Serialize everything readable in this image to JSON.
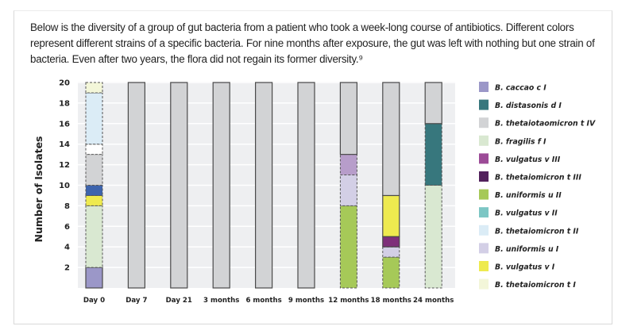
{
  "description": "Below is the diversity of a group of gut bacteria from a patient who took a week-long course of antibiotics. Different colors represent different strains of a specific bacteria. For nine months after exposure, the gut was left with nothing but one strain of bacteria. Even after two years, the flora did not regain its former diversity.⁹",
  "chart_data": {
    "type": "bar",
    "stacked": true,
    "title": "",
    "xlabel": "",
    "ylabel": "Number of Isolates",
    "ylim": [
      0,
      20
    ],
    "yticks": [
      2,
      4,
      6,
      8,
      10,
      12,
      14,
      16,
      18,
      20
    ],
    "grid": true,
    "legend_position": "right",
    "categories": [
      "Day 0",
      "Day 7",
      "Day 21",
      "3 months",
      "6 months",
      "9 months",
      "12 months",
      "18 months",
      "24 months"
    ],
    "legend": [
      {
        "name": "B. caccao c I",
        "color": "#9b97c8"
      },
      {
        "name": "B. distasonis d I",
        "color": "#37777d"
      },
      {
        "name": "B. thetaiotaomicron t IV",
        "color": "#d2d3d5"
      },
      {
        "name": "B. fragilis f I",
        "color": "#d9e8d1"
      },
      {
        "name": "B. vulgatus v III",
        "color": "#9c4b97"
      },
      {
        "name": "B. thetaiomicron t III",
        "color": "#52215c"
      },
      {
        "name": "B. uniformis u II",
        "color": "#a6c958"
      },
      {
        "name": "B. vulgatus v II",
        "color": "#7cc6c4"
      },
      {
        "name": "B. thetaiomicron t II",
        "color": "#dbecf6"
      },
      {
        "name": "B. uniformis u I",
        "color": "#d3cfe6"
      },
      {
        "name": "B. vulgatus v I",
        "color": "#eeea4f"
      },
      {
        "name": "B. thetaiomicron t I",
        "color": "#f3f6d9"
      }
    ],
    "stacks": [
      {
        "category": "Day 0",
        "segments": [
          {
            "strain": "B. caccao c I",
            "value": 2,
            "color": "#9b97c8",
            "dashed": false
          },
          {
            "strain": "B. fragilis f I",
            "value": 6,
            "color": "#d9e8d1",
            "dashed": true
          },
          {
            "strain": "B. vulgatus v I",
            "value": 1,
            "color": "#eeea4f",
            "dashed": true
          },
          {
            "strain": "unlabeled (blue)",
            "value": 1,
            "color": "#3d64ad",
            "dashed": true
          },
          {
            "strain": "B. thetaiotaomicron t IV",
            "value": 3,
            "color": "#d2d3d5",
            "dashed": true
          },
          {
            "strain": "unlabeled (white)",
            "value": 1,
            "color": "#ffffff",
            "dashed": true
          },
          {
            "strain": "B. thetaiomicron t II",
            "value": 5,
            "color": "#dbecf6",
            "dashed": true
          },
          {
            "strain": "B. thetaiomicron t I",
            "value": 1,
            "color": "#f3f6d9",
            "dashed": true
          }
        ]
      },
      {
        "category": "Day 7",
        "segments": [
          {
            "strain": "B. thetaiotaomicron t IV",
            "value": 20,
            "color": "#d2d3d5",
            "dashed": false
          }
        ]
      },
      {
        "category": "Day 21",
        "segments": [
          {
            "strain": "B. thetaiotaomicron t IV",
            "value": 20,
            "color": "#d2d3d5",
            "dashed": false
          }
        ]
      },
      {
        "category": "3 months",
        "segments": [
          {
            "strain": "B. thetaiotaomicron t IV",
            "value": 20,
            "color": "#d2d3d5",
            "dashed": false
          }
        ]
      },
      {
        "category": "6 months",
        "segments": [
          {
            "strain": "B. thetaiotaomicron t IV",
            "value": 20,
            "color": "#d2d3d5",
            "dashed": false
          }
        ]
      },
      {
        "category": "9 months",
        "segments": [
          {
            "strain": "B. thetaiotaomicron t IV",
            "value": 20,
            "color": "#d2d3d5",
            "dashed": false
          }
        ]
      },
      {
        "category": "12 months",
        "segments": [
          {
            "strain": "B. uniformis u II",
            "value": 8,
            "color": "#a6c958",
            "dashed": true
          },
          {
            "strain": "B. uniformis u I",
            "value": 3,
            "color": "#d3cfe6",
            "dashed": true
          },
          {
            "strain": "unlabeled (light purple)",
            "value": 2,
            "color": "#b79dca",
            "dashed": true
          },
          {
            "strain": "B. thetaiotaomicron t IV",
            "value": 7,
            "color": "#d2d3d5",
            "dashed": false
          }
        ]
      },
      {
        "category": "18 months",
        "segments": [
          {
            "strain": "B. uniformis u II",
            "value": 3,
            "color": "#a6c958",
            "dashed": true
          },
          {
            "strain": "B. uniformis u I",
            "value": 1,
            "color": "#d3cfe6",
            "dashed": true
          },
          {
            "strain": "B. vulgatus v III",
            "value": 1,
            "color": "#7e2f7a",
            "dashed": false
          },
          {
            "strain": "B. vulgatus v I",
            "value": 4,
            "color": "#eeea4f",
            "dashed": false
          },
          {
            "strain": "B. thetaiotaomicron t IV",
            "value": 11,
            "color": "#d2d3d5",
            "dashed": false
          }
        ]
      },
      {
        "category": "24 months",
        "segments": [
          {
            "strain": "B. fragilis f I",
            "value": 10,
            "color": "#d9e8d1",
            "dashed": true
          },
          {
            "strain": "B. distasonis d I",
            "value": 6,
            "color": "#37777d",
            "dashed": true
          },
          {
            "strain": "B. thetaiotaomicron t IV",
            "value": 4,
            "color": "#d2d3d5",
            "dashed": false
          }
        ]
      }
    ]
  }
}
